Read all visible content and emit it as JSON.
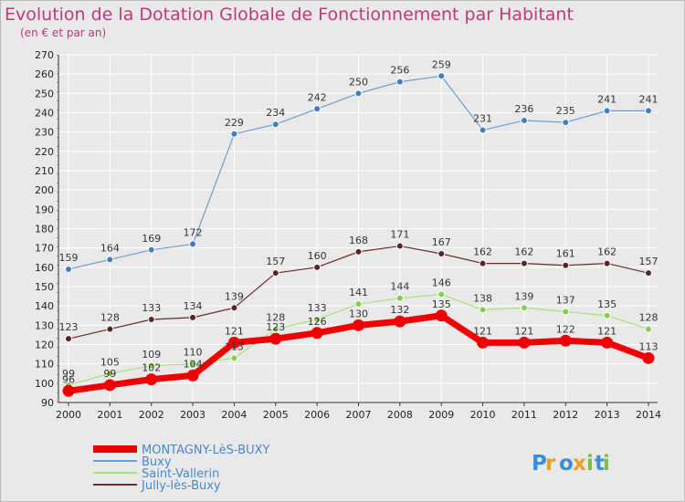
{
  "chart_data": {
    "type": "line",
    "title": "Evolution de la Dotation Globale de Fonctionnement par Habitant",
    "subtitle": "(en € et par an)",
    "xlabel": "",
    "ylabel": "",
    "x": [
      2000,
      2001,
      2002,
      2003,
      2004,
      2005,
      2006,
      2007,
      2008,
      2009,
      2010,
      2011,
      2012,
      2013,
      2014
    ],
    "ylim": [
      90,
      270
    ],
    "ytick_step": 10,
    "grid": true,
    "legend_position": "bottom-left",
    "series": [
      {
        "name": "Buxy",
        "color": "#6a9fd0",
        "marker": "#3f7fc0",
        "width": 1.2,
        "radius": 3.5,
        "values": [
          159,
          164,
          169,
          172,
          229,
          234,
          242,
          250,
          256,
          259,
          231,
          236,
          235,
          241,
          241
        ]
      },
      {
        "name": "Jully-lès-Buxy",
        "color": "#6a2c2c",
        "marker": "#5c2323",
        "width": 1.2,
        "radius": 3.5,
        "values": [
          123,
          128,
          133,
          134,
          139,
          157,
          160,
          168,
          171,
          167,
          162,
          162,
          161,
          162,
          157
        ]
      },
      {
        "name": "Saint-Vallerin",
        "color": "#a8e07a",
        "marker": "#7fcf4a",
        "width": 1.2,
        "radius": 3.5,
        "values": [
          99,
          105,
          109,
          110,
          113,
          128,
          133,
          141,
          144,
          146,
          138,
          139,
          137,
          135,
          128
        ]
      },
      {
        "name": "MONTAGNY-LèS-BUXY",
        "color": "#ee0000",
        "marker": "#ee0000",
        "width": 7,
        "radius": 6.5,
        "values": [
          96,
          99,
          102,
          104,
          121,
          123,
          126,
          130,
          132,
          135,
          121,
          121,
          122,
          121,
          113
        ]
      }
    ],
    "legend_order": [
      "MONTAGNY-LèS-BUXY",
      "Buxy",
      "Saint-Vallerin",
      "Jully-lès-Buxy"
    ]
  },
  "brand": {
    "logo_text": "Proxiti"
  }
}
